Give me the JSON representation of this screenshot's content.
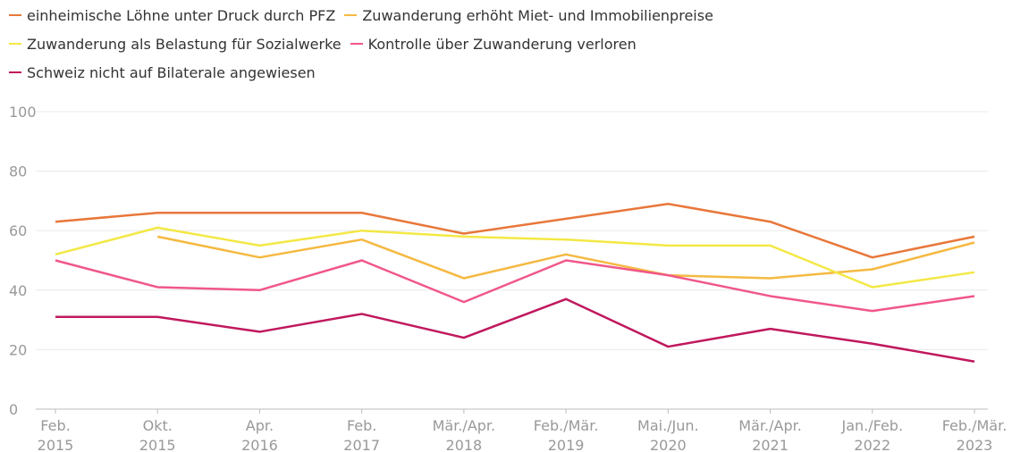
{
  "chart_data": {
    "type": "line",
    "categories": [
      "Feb. 2015",
      "Okt. 2015",
      "Apr. 2016",
      "Feb. 2017",
      "Mär./Apr. 2018",
      "Feb./Mär. 2019",
      "Mai./Jun. 2020",
      "Mär./Apr. 2021",
      "Jan./Feb. 2022",
      "Feb./Mär. 2023"
    ],
    "series": [
      {
        "name": "einheimische Löhne unter Druck durch PFZ",
        "color": "#e8773a",
        "values": [
          63,
          66,
          66,
          66,
          59,
          64,
          69,
          63,
          51,
          58
        ]
      },
      {
        "name": "Zuwanderung erhöht Miet- und Immobilienpreise",
        "color": "#f5b942",
        "values": [
          null,
          58,
          51,
          57,
          44,
          52,
          45,
          44,
          47,
          56
        ]
      },
      {
        "name": "Zuwanderung als Belastung für Sozialwerke",
        "color": "#f3e845",
        "values": [
          52,
          61,
          55,
          60,
          58,
          57,
          55,
          55,
          41,
          46
        ]
      },
      {
        "name": "Kontrolle über Zuwanderung verloren",
        "color": "#f0578a",
        "values": [
          50,
          41,
          40,
          50,
          36,
          50,
          45,
          38,
          33,
          38
        ]
      },
      {
        "name": "Schweiz nicht auf Bilaterale angewiesen",
        "color": "#c0185d",
        "values": [
          31,
          31,
          26,
          32,
          24,
          37,
          21,
          27,
          22,
          16
        ]
      }
    ],
    "ylim": [
      0,
      100
    ],
    "yticks": [
      0,
      20,
      40,
      60,
      80,
      100
    ],
    "grid": true
  }
}
